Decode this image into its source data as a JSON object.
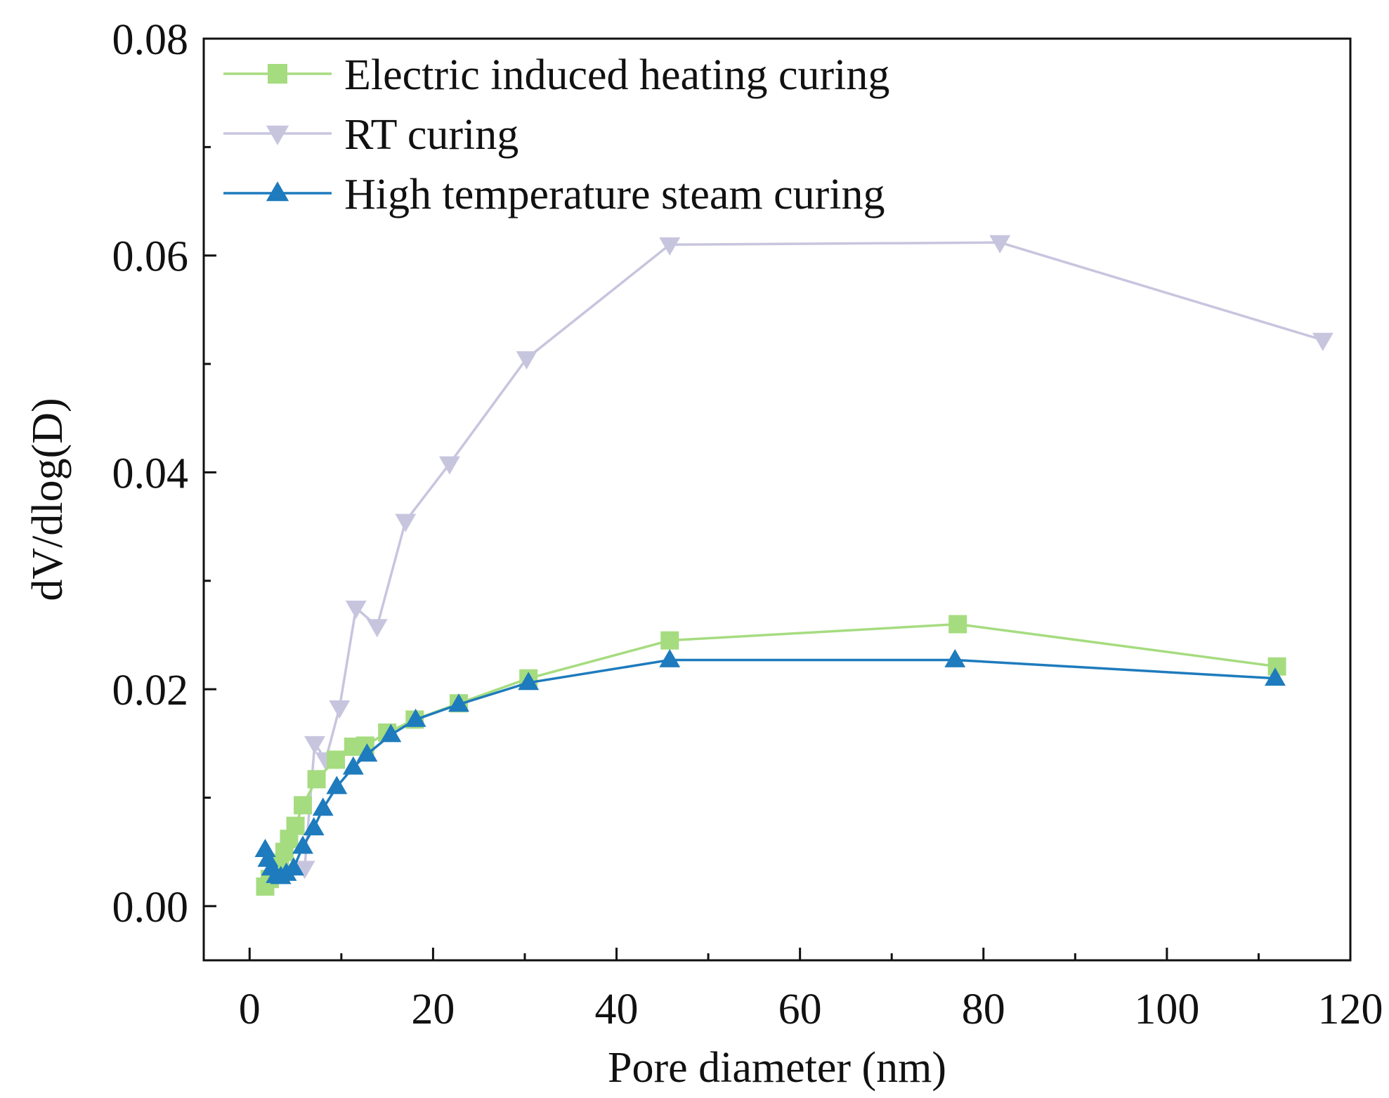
{
  "chart_data": {
    "type": "line",
    "title": "",
    "xlabel": "Pore diameter (nm)",
    "ylabel": "dV/dlog(D)",
    "xlim": [
      -5,
      120
    ],
    "ylim": [
      -0.005,
      0.08
    ],
    "xticks": [
      0,
      20,
      40,
      60,
      80,
      100,
      120
    ],
    "xtick_labels": [
      "0",
      "20",
      "40",
      "60",
      "80",
      "100",
      "120"
    ],
    "yticks": [
      0.0,
      0.02,
      0.04,
      0.06,
      0.08
    ],
    "ytick_labels": [
      "0.00",
      "0.02",
      "0.04",
      "0.06",
      "0.08"
    ],
    "grid": false,
    "legend_position": "top-left",
    "series": [
      {
        "name": "Electric induced heating curing",
        "color": "#a6dc80",
        "marker": "square",
        "x": [
          1.7,
          2.2,
          2.8,
          3.3,
          3.8,
          4.3,
          5.0,
          5.8,
          7.3,
          9.4,
          11.3,
          12.6,
          15.0,
          18.0,
          22.8,
          30.4,
          45.8,
          77.2,
          112.0
        ],
        "y": [
          0.0018,
          0.0025,
          0.0032,
          0.004,
          0.005,
          0.0062,
          0.0074,
          0.0093,
          0.0117,
          0.0135,
          0.0147,
          0.0148,
          0.016,
          0.0172,
          0.0187,
          0.021,
          0.0245,
          0.026,
          0.0221
        ]
      },
      {
        "name": "RT curing",
        "color": "#c7c5de",
        "marker": "triangle-down",
        "x": [
          6.0,
          7.1,
          8.3,
          9.8,
          11.6,
          13.9,
          17.0,
          21.8,
          30.2,
          45.8,
          81.8,
          117.0
        ],
        "y": [
          0.0035,
          0.015,
          0.0135,
          0.0183,
          0.0275,
          0.0258,
          0.0355,
          0.0408,
          0.0505,
          0.061,
          0.0612,
          0.0522
        ]
      },
      {
        "name": "High temperature steam curing",
        "color": "#1e7bbd",
        "marker": "triangle-up",
        "x": [
          1.7,
          2.0,
          2.4,
          2.9,
          3.4,
          4.0,
          4.8,
          5.8,
          7.0,
          8.0,
          9.5,
          11.3,
          12.8,
          15.4,
          18.1,
          22.8,
          30.4,
          45.8,
          76.9,
          111.8
        ],
        "y": [
          0.0052,
          0.0043,
          0.0035,
          0.0028,
          0.0027,
          0.003,
          0.0035,
          0.0055,
          0.0072,
          0.009,
          0.011,
          0.0128,
          0.014,
          0.0158,
          0.0172,
          0.0186,
          0.0206,
          0.0227,
          0.0227,
          0.021
        ]
      }
    ]
  }
}
